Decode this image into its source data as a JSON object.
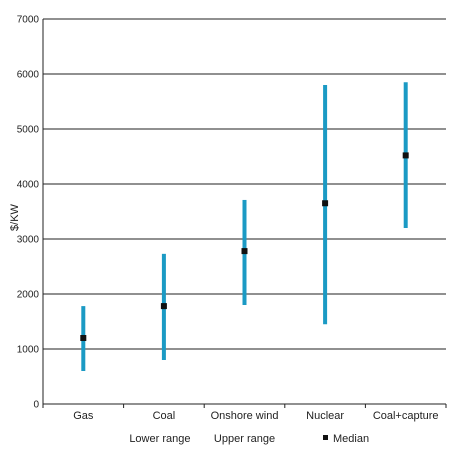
{
  "chart_data": {
    "type": "range",
    "title": "",
    "xlabel": "",
    "ylabel": "$/KW",
    "ylim": [
      0,
      7000
    ],
    "yticks": [
      0,
      1000,
      2000,
      3000,
      4000,
      5000,
      6000,
      7000
    ],
    "grid": true,
    "categories": [
      "Gas",
      "Coal",
      "Onshore wind",
      "Nuclear",
      "Coal+capture"
    ],
    "series": [
      {
        "name": "Lower range",
        "values": [
          600,
          800,
          1800,
          1450,
          3200
        ]
      },
      {
        "name": "Upper range",
        "values": [
          1780,
          2730,
          3710,
          5800,
          5850
        ]
      },
      {
        "name": "Median",
        "values": [
          1200,
          1780,
          2780,
          3650,
          4520
        ]
      }
    ],
    "legend_position": "bottom",
    "colors": {
      "range": "#1b9ac4",
      "median": "#111111",
      "grid": "#222222"
    }
  }
}
